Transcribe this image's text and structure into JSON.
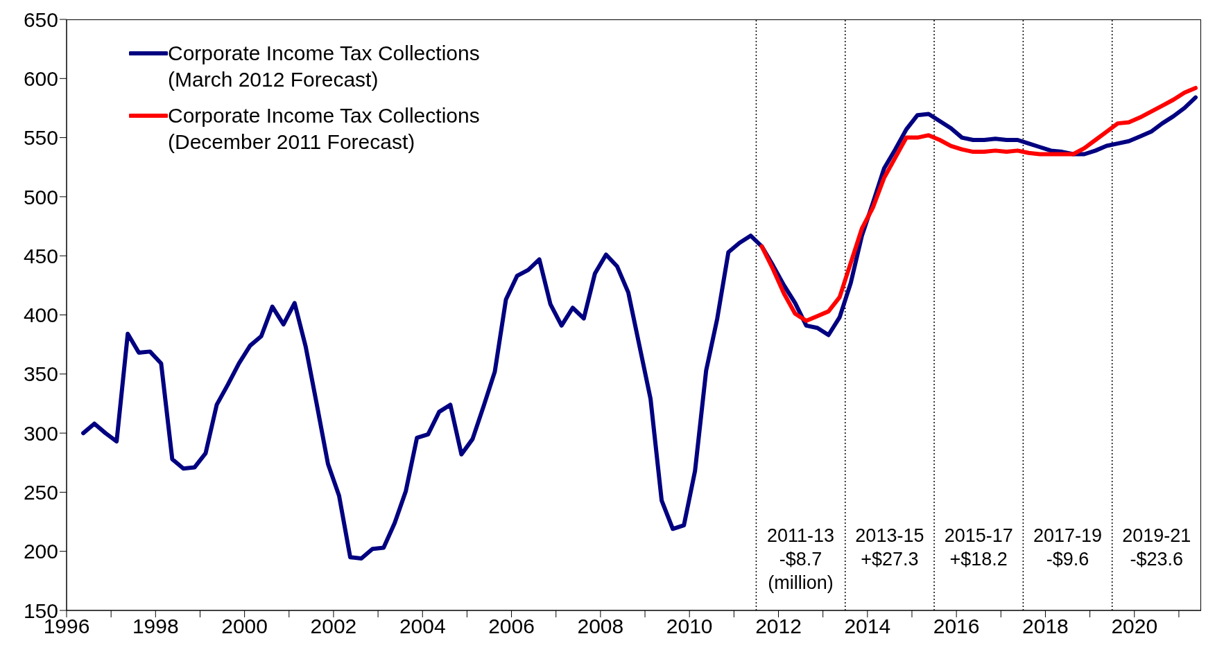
{
  "chart_data": {
    "type": "line",
    "x": [
      1996.375,
      1996.625,
      1996.875,
      1997.125,
      1997.375,
      1997.625,
      1997.875,
      1998.125,
      1998.375,
      1998.625,
      1998.875,
      1999.125,
      1999.375,
      1999.625,
      1999.875,
      2000.125,
      2000.375,
      2000.625,
      2000.875,
      2001.125,
      2001.375,
      2001.625,
      2001.875,
      2002.125,
      2002.375,
      2002.625,
      2002.875,
      2003.125,
      2003.375,
      2003.625,
      2003.875,
      2004.125,
      2004.375,
      2004.625,
      2004.875,
      2005.125,
      2005.375,
      2005.625,
      2005.875,
      2006.125,
      2006.375,
      2006.625,
      2006.875,
      2007.125,
      2007.375,
      2007.625,
      2007.875,
      2008.125,
      2008.375,
      2008.625,
      2008.875,
      2009.125,
      2009.375,
      2009.625,
      2009.875,
      2010.125,
      2010.375,
      2010.625,
      2010.875,
      2011.125,
      2011.375,
      2011.625,
      2011.875,
      2012.125,
      2012.375,
      2012.625,
      2012.875,
      2013.125,
      2013.375,
      2013.625,
      2013.875,
      2014.125,
      2014.375,
      2014.625,
      2014.875,
      2015.125,
      2015.375,
      2015.625,
      2015.875,
      2016.125,
      2016.375,
      2016.625,
      2016.875,
      2017.125,
      2017.375,
      2017.625,
      2017.875,
      2018.125,
      2018.375,
      2018.625,
      2018.875,
      2019.125,
      2019.375,
      2019.625,
      2019.875,
      2020.125,
      2020.375,
      2020.625,
      2020.875,
      2021.125,
      2021.375
    ],
    "series": [
      {
        "name": "Corporate Income Tax Collections (March 2012 Forecast)",
        "color": "#000080",
        "values": [
          300,
          308,
          300,
          293,
          384,
          368,
          369,
          359,
          278,
          270,
          271,
          283,
          324,
          341,
          359,
          374,
          382,
          407,
          392,
          410,
          373,
          324,
          274,
          247,
          195,
          194,
          202,
          203,
          224,
          251,
          296,
          299,
          318,
          324,
          282,
          295,
          323,
          352,
          413,
          433,
          438,
          447,
          409,
          391,
          406,
          397,
          435,
          451,
          441,
          419,
          374,
          329,
          243,
          219,
          222,
          268,
          353,
          397,
          453,
          461,
          467,
          458,
          442,
          425,
          410,
          391,
          389,
          383,
          398,
          427,
          467,
          495,
          524,
          540,
          557,
          569,
          570,
          564,
          558,
          550,
          548,
          548,
          549,
          548,
          548,
          545,
          542,
          539,
          538,
          536,
          536,
          539,
          543,
          545,
          547,
          551,
          555,
          562,
          568,
          575,
          584
        ]
      },
      {
        "name": "Corporate Income Tax Collections (December 2011 Forecast)",
        "color": "#ff0000",
        "x": [
          2011.625,
          2011.875,
          2012.125,
          2012.375,
          2012.625,
          2012.875,
          2013.125,
          2013.375,
          2013.625,
          2013.875,
          2014.125,
          2014.375,
          2014.625,
          2014.875,
          2015.125,
          2015.375,
          2015.625,
          2015.875,
          2016.125,
          2016.375,
          2016.625,
          2016.875,
          2017.125,
          2017.375,
          2017.625,
          2017.875,
          2018.125,
          2018.375,
          2018.625,
          2018.875,
          2019.125,
          2019.375,
          2019.625,
          2019.875,
          2020.125,
          2020.375,
          2020.625,
          2020.875,
          2021.125,
          2021.375
        ],
        "values": [
          458,
          439,
          418,
          401,
          395,
          399,
          403,
          415,
          444,
          473,
          491,
          516,
          533,
          550,
          550,
          552,
          548,
          543,
          540,
          538,
          538,
          539,
          538,
          539,
          537,
          536,
          536,
          536,
          536,
          541,
          548,
          555,
          562,
          563,
          567,
          572,
          577,
          582,
          588,
          592
        ]
      }
    ],
    "xlim": [
      1996,
      2021.5
    ],
    "xticks": [
      1996,
      {
        "value": 1997,
        "label": null
      },
      1998,
      {
        "value": 1999,
        "label": null
      },
      2000,
      {
        "value": 2001,
        "label": null
      },
      2002,
      {
        "value": 2003,
        "label": null
      },
      2004,
      {
        "value": 2005,
        "label": null
      },
      2006,
      {
        "value": 2007,
        "label": null
      },
      2008,
      {
        "value": 2009,
        "label": null
      },
      2010,
      {
        "value": 2011,
        "label": null
      },
      2012,
      {
        "value": 2013,
        "label": null
      },
      2014,
      {
        "value": 2015,
        "label": null
      },
      2016,
      {
        "value": 2017,
        "label": null
      },
      2018,
      {
        "value": 2019,
        "label": null
      },
      2020,
      {
        "value": 2021,
        "label": null
      }
    ],
    "ylim": [
      150,
      650
    ],
    "yticks": [
      150,
      200,
      250,
      300,
      350,
      400,
      450,
      500,
      550,
      600,
      650
    ],
    "ref_lines": [
      {
        "axis": "x",
        "value": 2011.5,
        "color": "#000000",
        "line_style": "dotted"
      },
      {
        "axis": "x",
        "value": 2013.5,
        "color": "#000000",
        "line_style": "dotted"
      },
      {
        "axis": "x",
        "value": 2015.5,
        "color": "#000000",
        "line_style": "dotted"
      },
      {
        "axis": "x",
        "value": 2017.5,
        "color": "#000000",
        "line_style": "dotted"
      },
      {
        "axis": "x",
        "value": 2019.5,
        "color": "#000000",
        "line_style": "dotted"
      }
    ],
    "annotations": [
      "2011-13\n-$8.7\n(million)",
      "2013-15\n+$27.3",
      "2015-17\n+$18.2",
      "2017-19\n-$9.6",
      "2019-21\n-$23.6"
    ],
    "grid": false,
    "legend": "top left",
    "marker": "none",
    "line_style": "solid"
  }
}
